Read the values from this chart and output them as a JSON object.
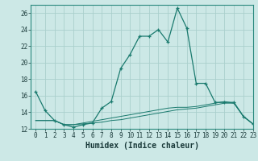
{
  "xlabel": "Humidex (Indice chaleur)",
  "background_color": "#cce8e6",
  "grid_color": "#aacfcc",
  "line_color": "#1a7a6e",
  "x_values": [
    0,
    1,
    2,
    3,
    4,
    5,
    6,
    7,
    8,
    9,
    10,
    11,
    12,
    13,
    14,
    15,
    16,
    17,
    18,
    19,
    20,
    21,
    22,
    23
  ],
  "series1": [
    16.5,
    14.2,
    13.0,
    12.5,
    12.2,
    12.5,
    12.7,
    14.5,
    15.3,
    19.3,
    21.0,
    23.2,
    23.2,
    24.0,
    22.5,
    26.6,
    24.2,
    17.5,
    17.5,
    15.2,
    15.2,
    15.2,
    13.5,
    12.6
  ],
  "series2": [
    13.0,
    13.0,
    13.0,
    12.5,
    12.5,
    12.6,
    12.7,
    12.8,
    13.0,
    13.1,
    13.3,
    13.5,
    13.7,
    13.9,
    14.1,
    14.3,
    14.4,
    14.5,
    14.7,
    14.9,
    15.1,
    15.1,
    13.5,
    12.6
  ],
  "series3": [
    13.0,
    13.0,
    13.0,
    12.5,
    12.5,
    12.7,
    12.9,
    13.1,
    13.3,
    13.5,
    13.7,
    13.9,
    14.1,
    14.3,
    14.5,
    14.6,
    14.6,
    14.7,
    14.9,
    15.1,
    15.3,
    15.1,
    13.5,
    12.6
  ],
  "ylim": [
    12,
    27
  ],
  "xlim": [
    -0.5,
    23
  ],
  "yticks": [
    12,
    14,
    16,
    18,
    20,
    22,
    24,
    26
  ],
  "xticks": [
    0,
    1,
    2,
    3,
    4,
    5,
    6,
    7,
    8,
    9,
    10,
    11,
    12,
    13,
    14,
    15,
    16,
    17,
    18,
    19,
    20,
    21,
    22,
    23
  ],
  "tick_fontsize": 5.5,
  "xlabel_fontsize": 7
}
